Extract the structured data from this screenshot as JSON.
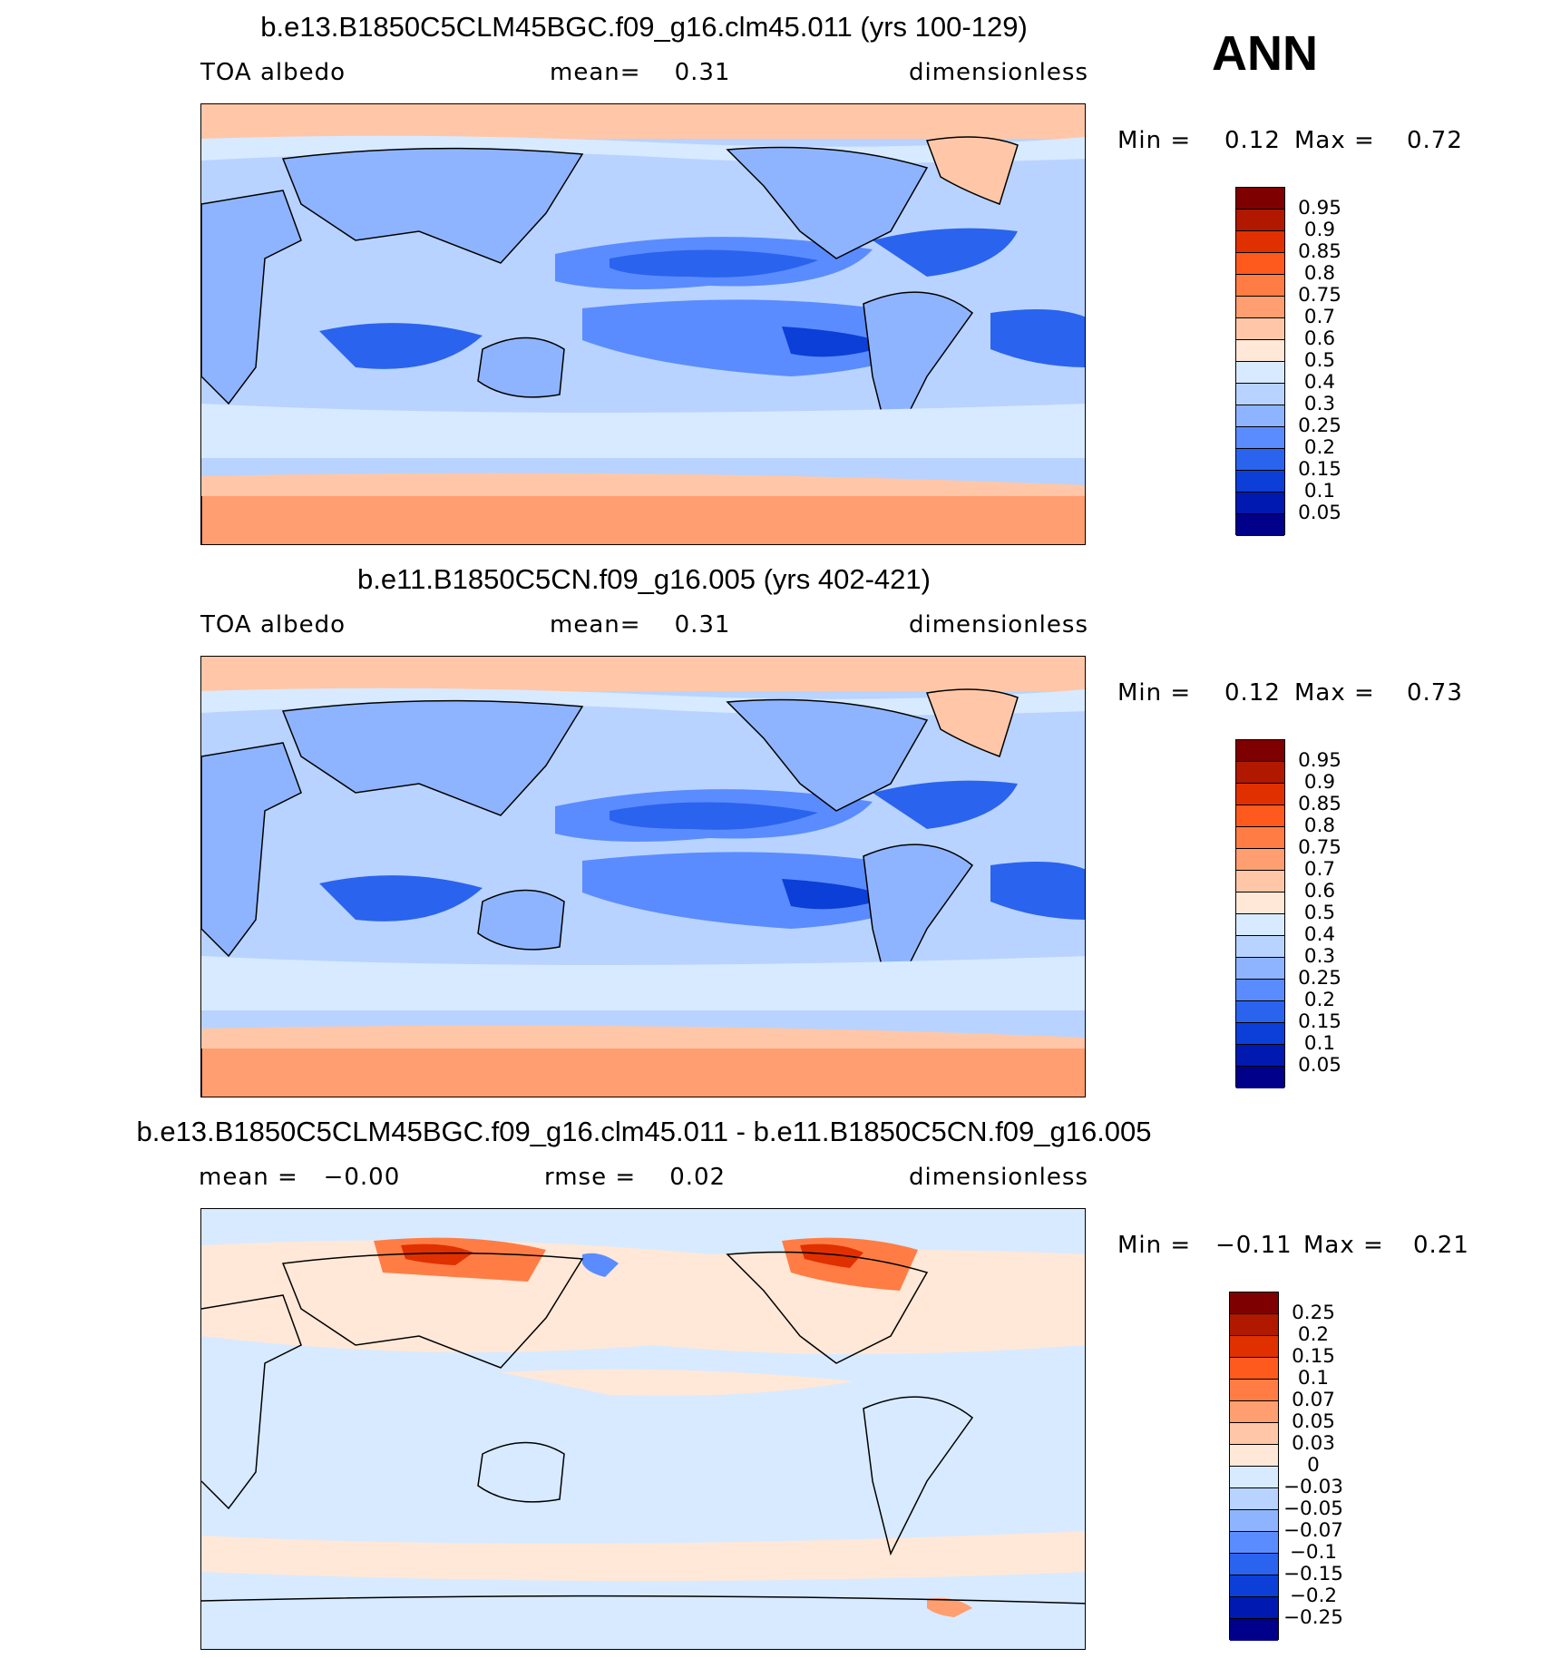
{
  "season": "ANN",
  "panels": [
    {
      "title": "b.e13.B1850C5CLM45BGC.f09_g16.clm45.011 (yrs 100-129)",
      "left_label": "TOA albedo",
      "center_label": "mean=    0.31",
      "right_label": "dimensionless",
      "min_label": "Min =",
      "min_value": "0.12",
      "max_label": "Max =",
      "max_value": "0.72",
      "colorbar_labels": [
        "0.95",
        "0.9",
        "0.85",
        "0.8",
        "0.75",
        "0.7",
        "0.6",
        "0.5",
        "0.4",
        "0.3",
        "0.25",
        "0.2",
        "0.15",
        "0.1",
        "0.05"
      ],
      "colorbar_colors": [
        "#7f0000",
        "#b01800",
        "#e03000",
        "#ff5a1e",
        "#ff7d45",
        "#ff9e70",
        "#ffc7a8",
        "#ffe8d8",
        "#d8eaff",
        "#b8d3ff",
        "#8fb4ff",
        "#5a8cff",
        "#2a63ee",
        "#0b3fd8",
        "#0019b0",
        "#00008a"
      ]
    },
    {
      "title": "b.e11.B1850C5CN.f09_g16.005 (yrs 402-421)",
      "left_label": "TOA albedo",
      "center_label": "mean=    0.31",
      "right_label": "dimensionless",
      "min_label": "Min =",
      "min_value": "0.12",
      "max_label": "Max =",
      "max_value": "0.73",
      "colorbar_labels": [
        "0.95",
        "0.9",
        "0.85",
        "0.8",
        "0.75",
        "0.7",
        "0.6",
        "0.5",
        "0.4",
        "0.3",
        "0.25",
        "0.2",
        "0.15",
        "0.1",
        "0.05"
      ],
      "colorbar_colors": [
        "#7f0000",
        "#b01800",
        "#e03000",
        "#ff5a1e",
        "#ff7d45",
        "#ff9e70",
        "#ffc7a8",
        "#ffe8d8",
        "#d8eaff",
        "#b8d3ff",
        "#8fb4ff",
        "#5a8cff",
        "#2a63ee",
        "#0b3fd8",
        "#0019b0",
        "#00008a"
      ]
    },
    {
      "title": "b.e13.B1850C5CLM45BGC.f09_g16.clm45.011 - b.e11.B1850C5CN.f09_g16.005",
      "left_label": "mean =   −0.00",
      "center_label": "rmse =    0.02",
      "right_label": "dimensionless",
      "min_label": "Min =",
      "min_value": "−0.11",
      "max_label": "Max =",
      "max_value": "0.21",
      "colorbar_labels": [
        "0.25",
        "0.2",
        "0.15",
        "0.1",
        "0.07",
        "0.05",
        "0.03",
        "0",
        "−0.03",
        "−0.05",
        "−0.07",
        "−0.1",
        "−0.15",
        "−0.2",
        "−0.25"
      ],
      "colorbar_colors": [
        "#7f0000",
        "#b01800",
        "#e03000",
        "#ff5a1e",
        "#ff7d45",
        "#ff9e70",
        "#ffc7a8",
        "#ffe8d8",
        "#d8eaff",
        "#b8d3ff",
        "#8fb4ff",
        "#5a8cff",
        "#2a63ee",
        "#0b3fd8",
        "#0019b0",
        "#00008a"
      ]
    }
  ]
}
